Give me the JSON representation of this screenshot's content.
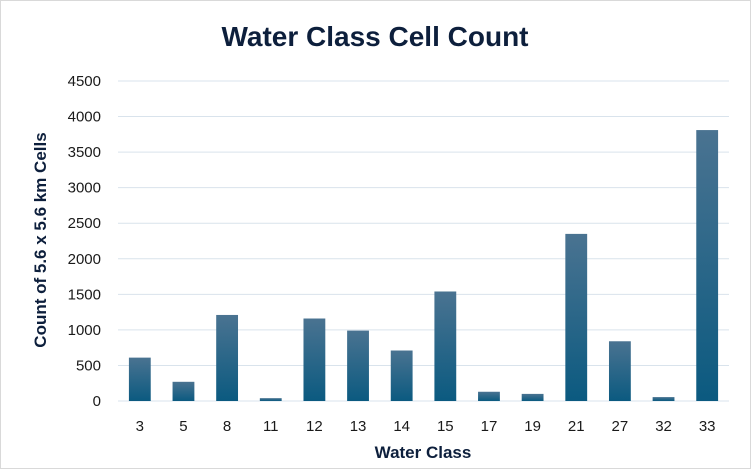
{
  "chart_data": {
    "type": "bar",
    "title": "Water Class Cell Count",
    "xlabel": "Water Class",
    "ylabel": "Count of 5.6 x 5.6 km Cells",
    "categories": [
      "3",
      "5",
      "8",
      "11",
      "12",
      "13",
      "14",
      "15",
      "17",
      "19",
      "21",
      "27",
      "32",
      "33"
    ],
    "values": [
      610,
      270,
      1210,
      40,
      1160,
      990,
      710,
      1540,
      130,
      100,
      2350,
      840,
      55,
      3810
    ],
    "ylim": [
      0,
      4500
    ],
    "yticks": [
      "0",
      "500",
      "1000",
      "1500",
      "2000",
      "2500",
      "3000",
      "3500",
      "4000",
      "4500"
    ],
    "grid": true,
    "legend": "none",
    "colors": {
      "bar_top": "#4a7391",
      "bar_bottom": "#0b5a80",
      "grid": "#d9e3ec",
      "title": "#0d1f3c"
    }
  }
}
